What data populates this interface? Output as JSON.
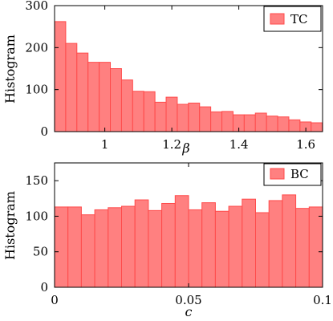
{
  "chart_data": [
    {
      "type": "bar",
      "bins": {
        "start": 0.85,
        "width": 0.0333,
        "count": 24
      },
      "values": [
        262,
        210,
        187,
        165,
        165,
        150,
        123,
        96,
        95,
        70,
        82,
        65,
        68,
        59,
        47,
        48,
        40,
        40,
        44,
        37,
        35,
        28,
        23,
        21
      ],
      "xlim": [
        0.85,
        1.65
      ],
      "ylim": [
        0,
        300
      ],
      "xticks": [
        1,
        1.2,
        1.4,
        1.6
      ],
      "xtick_labels": [
        "1",
        "1.2",
        "1.4",
        "1.6"
      ],
      "yticks": [
        0,
        100,
        200,
        300
      ],
      "ytick_labels": [
        "0",
        "100",
        "200",
        "300"
      ],
      "xlabel": "β",
      "ylabel": "Histogram",
      "legend": {
        "label": "TC",
        "position": "top-right"
      },
      "colors": {
        "fill": "#ff8080",
        "edge": "#ff4a4a"
      }
    },
    {
      "type": "bar",
      "bins": {
        "start": 0,
        "width": 0.005,
        "count": 20
      },
      "values": [
        113,
        113,
        102,
        109,
        112,
        114,
        123,
        108,
        118,
        129,
        109,
        119,
        107,
        114,
        124,
        105,
        122,
        130,
        111,
        113
      ],
      "xlim": [
        0,
        0.1
      ],
      "ylim": [
        0,
        175
      ],
      "xticks": [
        0,
        0.05,
        0.1
      ],
      "xtick_labels": [
        "0",
        "0.05",
        "0.1"
      ],
      "yticks": [
        0,
        50,
        100,
        150
      ],
      "ytick_labels": [
        "0",
        "50",
        "100",
        "150"
      ],
      "xlabel": "c",
      "ylabel": "Histogram",
      "legend": {
        "label": "BC",
        "position": "top-right"
      },
      "colors": {
        "fill": "#ff8080",
        "edge": "#ff4a4a"
      }
    }
  ]
}
